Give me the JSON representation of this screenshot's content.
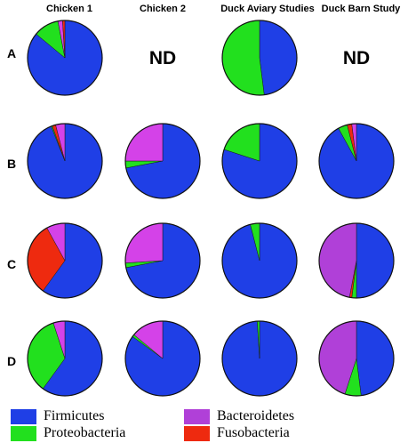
{
  "columns": [
    "Chicken 1",
    "Chicken 2",
    "Duck Aviary Studies",
    "Duck Barn Study"
  ],
  "rows": [
    "A",
    "B",
    "C",
    "D"
  ],
  "not_determined_label": "ND",
  "colors": {
    "Firmicutes": "#1f3fe6",
    "Proteobacteria": "#22e01e",
    "Bacteroidetes": "#d442e8",
    "Fusobacteria": "#ee2a0f",
    "Bacteroidetes_alt": "#b040d8"
  },
  "legend": [
    {
      "label": "Firmicutes",
      "color": "#1f3fe6"
    },
    {
      "label": "Bacteroidetes",
      "color": "#b040d8"
    },
    {
      "label": "Proteobacteria",
      "color": "#22e01e"
    },
    {
      "label": "Fusobacteria",
      "color": "#ee2a0f"
    }
  ],
  "chart_data": {
    "type": "pie",
    "categories": [
      "Firmicutes",
      "Proteobacteria",
      "Bacteroidetes",
      "Fusobacteria"
    ],
    "panels": [
      {
        "row": "A",
        "column": "Chicken 1",
        "slices": [
          {
            "name": "Firmicutes",
            "value": 0.86,
            "color": "#1f3fe6"
          },
          {
            "name": "Proteobacteria",
            "value": 0.11,
            "color": "#22e01e"
          },
          {
            "name": "Bacteroidetes",
            "value": 0.02,
            "color": "#d442e8"
          },
          {
            "name": "Fusobacteria",
            "value": 0.01,
            "color": "#ee2a0f"
          }
        ]
      },
      {
        "row": "A",
        "column": "Chicken 2",
        "nd": true
      },
      {
        "row": "A",
        "column": "Duck Aviary Studies",
        "slices": [
          {
            "name": "Firmicutes",
            "value": 0.48,
            "color": "#1f3fe6"
          },
          {
            "name": "Proteobacteria",
            "value": 0.52,
            "color": "#22e01e"
          }
        ]
      },
      {
        "row": "A",
        "column": "Duck Barn Study",
        "nd": true
      },
      {
        "row": "B",
        "column": "Chicken 1",
        "slices": [
          {
            "name": "Firmicutes",
            "value": 0.94,
            "color": "#1f3fe6"
          },
          {
            "name": "Proteobacteria",
            "value": 0.005,
            "color": "#22e01e"
          },
          {
            "name": "Fusobacteria",
            "value": 0.015,
            "color": "#ee2a0f"
          },
          {
            "name": "Bacteroidetes",
            "value": 0.04,
            "color": "#d442e8"
          }
        ]
      },
      {
        "row": "B",
        "column": "Chicken 2",
        "slices": [
          {
            "name": "Firmicutes",
            "value": 0.72,
            "color": "#1f3fe6"
          },
          {
            "name": "Proteobacteria",
            "value": 0.03,
            "color": "#22e01e"
          },
          {
            "name": "Bacteroidetes",
            "value": 0.25,
            "color": "#d442e8"
          }
        ]
      },
      {
        "row": "B",
        "column": "Duck Aviary Studies",
        "slices": [
          {
            "name": "Firmicutes",
            "value": 0.8,
            "color": "#1f3fe6"
          },
          {
            "name": "Proteobacteria",
            "value": 0.2,
            "color": "#22e01e"
          }
        ]
      },
      {
        "row": "B",
        "column": "Duck Barn Study",
        "slices": [
          {
            "name": "Firmicutes",
            "value": 0.92,
            "color": "#1f3fe6"
          },
          {
            "name": "Proteobacteria",
            "value": 0.04,
            "color": "#22e01e"
          },
          {
            "name": "Fusobacteria",
            "value": 0.02,
            "color": "#ee2a0f"
          },
          {
            "name": "Bacteroidetes",
            "value": 0.02,
            "color": "#d442e8"
          }
        ]
      },
      {
        "row": "C",
        "column": "Chicken 1",
        "slices": [
          {
            "name": "Firmicutes",
            "value": 0.6,
            "color": "#1f3fe6"
          },
          {
            "name": "Fusobacteria",
            "value": 0.32,
            "color": "#ee2a0f"
          },
          {
            "name": "Bacteroidetes",
            "value": 0.08,
            "color": "#d442e8"
          }
        ]
      },
      {
        "row": "C",
        "column": "Chicken 2",
        "slices": [
          {
            "name": "Firmicutes",
            "value": 0.72,
            "color": "#1f3fe6"
          },
          {
            "name": "Proteobacteria",
            "value": 0.02,
            "color": "#22e01e"
          },
          {
            "name": "Bacteroidetes",
            "value": 0.26,
            "color": "#d442e8"
          }
        ]
      },
      {
        "row": "C",
        "column": "Duck Aviary Studies",
        "slices": [
          {
            "name": "Firmicutes",
            "value": 0.96,
            "color": "#1f3fe6"
          },
          {
            "name": "Proteobacteria",
            "value": 0.04,
            "color": "#22e01e"
          }
        ]
      },
      {
        "row": "C",
        "column": "Duck Barn Study",
        "slices": [
          {
            "name": "Firmicutes",
            "value": 0.5,
            "color": "#1f3fe6"
          },
          {
            "name": "Proteobacteria",
            "value": 0.02,
            "color": "#22e01e"
          },
          {
            "name": "Fusobacteria",
            "value": 0.01,
            "color": "#ee2a0f"
          },
          {
            "name": "Bacteroidetes",
            "value": 0.47,
            "color": "#b040d8"
          }
        ]
      },
      {
        "row": "D",
        "column": "Chicken 1",
        "slices": [
          {
            "name": "Firmicutes",
            "value": 0.6,
            "color": "#1f3fe6"
          },
          {
            "name": "Proteobacteria",
            "value": 0.35,
            "color": "#22e01e"
          },
          {
            "name": "Bacteroidetes",
            "value": 0.05,
            "color": "#d442e8"
          }
        ]
      },
      {
        "row": "D",
        "column": "Chicken 2",
        "slices": [
          {
            "name": "Firmicutes",
            "value": 0.85,
            "color": "#1f3fe6"
          },
          {
            "name": "Proteobacteria",
            "value": 0.01,
            "color": "#22e01e"
          },
          {
            "name": "Bacteroidetes",
            "value": 0.14,
            "color": "#d442e8"
          }
        ]
      },
      {
        "row": "D",
        "column": "Duck Aviary Studies",
        "slices": [
          {
            "name": "Firmicutes",
            "value": 0.99,
            "color": "#1f3fe6"
          },
          {
            "name": "Proteobacteria",
            "value": 0.01,
            "color": "#22e01e"
          }
        ]
      },
      {
        "row": "D",
        "column": "Duck Barn Study",
        "slices": [
          {
            "name": "Firmicutes",
            "value": 0.48,
            "color": "#1f3fe6"
          },
          {
            "name": "Proteobacteria",
            "value": 0.07,
            "color": "#22e01e"
          },
          {
            "name": "Bacteroidetes",
            "value": 0.45,
            "color": "#b040d8"
          }
        ]
      }
    ]
  }
}
